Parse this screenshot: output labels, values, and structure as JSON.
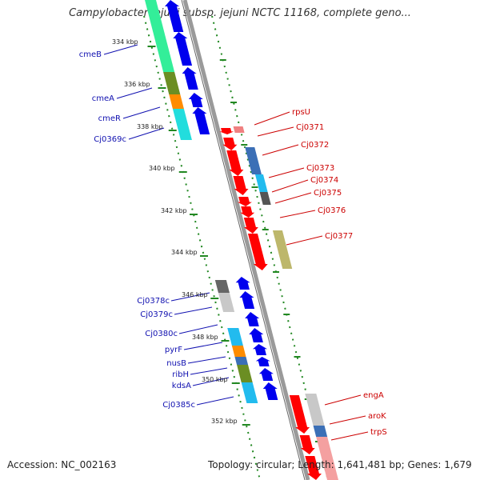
{
  "title": "Campylobacter jejuni subsp. jejuni NCTC 11168, complete geno...",
  "footer": {
    "accession": "Accession: NC_002163",
    "stats": "Topology: circular; Length: 1,641,481 bp; Genes: 1,679"
  },
  "ruler": [
    "334 kbp",
    "336 kbp",
    "338 kbp",
    "340 kbp",
    "342 kbp",
    "344 kbp",
    "346 kbp",
    "348 kbp",
    "350 kbp",
    "352 kbp"
  ],
  "genes_reverse": [
    "cmeB",
    "cmeA",
    "cmeR",
    "Cj0369c",
    "Cj0378c",
    "Cj0379c",
    "Cj0380c",
    "pyrF",
    "nusB",
    "ribH",
    "kdsA",
    "Cj0385c"
  ],
  "genes_forward": [
    "rpsU",
    "Cj0371",
    "Cj0372",
    "Cj0373",
    "Cj0374",
    "Cj0375",
    "Cj0376",
    "Cj0377",
    "engA",
    "aroK",
    "trpS"
  ],
  "colors": {
    "reverse_label": "#1010b0",
    "forward_label": "#cc0000",
    "reverse_cds": "#0000ee",
    "forward_cds": "#ff0000",
    "tick": "#228822",
    "backbone": "#888888"
  }
}
